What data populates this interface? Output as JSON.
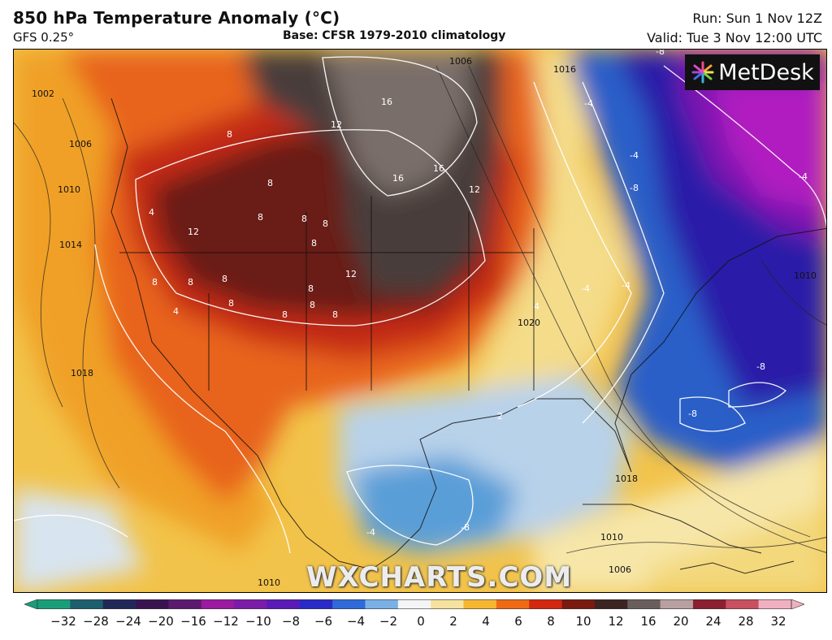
{
  "header": {
    "title": "850 hPa Temperature Anomaly (°C)",
    "model": "GFS 0.25°",
    "base": "Base: CFSR 1979-2010 climatology",
    "run": "Run: Sun 1 Nov 12Z",
    "valid": "Valid: Tue 3 Nov 12:00 UTC"
  },
  "branding": {
    "logo_text": "MetDesk",
    "watermark": "WXCHARTS.COM"
  },
  "legend": {
    "ticks": [
      "−32",
      "−28",
      "−24",
      "−20",
      "−16",
      "−12",
      "−10",
      "−8",
      "−6",
      "−4",
      "−2",
      "0",
      "2",
      "4",
      "6",
      "8",
      "10",
      "12",
      "16",
      "20",
      "24",
      "28",
      "32"
    ],
    "colors": [
      "#1a9e7a",
      "#1d5f6e",
      "#20285a",
      "#3a1450",
      "#5c1a6e",
      "#9a1aa0",
      "#7b1ca8",
      "#5a1ab8",
      "#2a2ac8",
      "#2f6ad8",
      "#7ab0e6",
      "#f4f4f4",
      "#f6e2a0",
      "#f6b632",
      "#ee6a14",
      "#d22810",
      "#7a1a10",
      "#3c2422",
      "#6a5e5c",
      "#b8a0a0",
      "#8a2030",
      "#c85060",
      "#f0b0c0"
    ]
  },
  "map": {
    "anomaly_labels": [
      "16",
      "12",
      "16",
      "16",
      "12",
      "8",
      "8",
      "8",
      "8",
      "8",
      "12",
      "8",
      "8",
      "8",
      "8",
      "8",
      "8",
      "12",
      "8",
      "8",
      "4",
      "4",
      "8",
      "4",
      "-4",
      "-4",
      "-8",
      "-8",
      "-8",
      "-8",
      "-8",
      "-4",
      "-4",
      "-4",
      "-4",
      "2"
    ],
    "isobar_labels": [
      "1002",
      "1006",
      "1010",
      "1014",
      "1018",
      "1006",
      "1020",
      "1018",
      "1010",
      "1010",
      "1006",
      "1010",
      "1016"
    ]
  }
}
